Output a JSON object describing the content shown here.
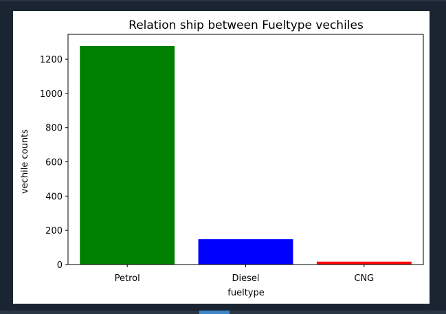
{
  "chart_data": {
    "type": "bar",
    "title": "Relation ship between Fueltype vechiles",
    "xlabel": "fueltype",
    "ylabel": "vechile counts",
    "categories": [
      "Petrol",
      "Diesel",
      "CNG"
    ],
    "values": [
      1277,
      148,
      17
    ],
    "colors": [
      "#008000",
      "#0000ff",
      "#ff0000"
    ],
    "ylim": [
      0,
      1345
    ],
    "yticks": [
      0,
      200,
      400,
      600,
      800,
      1000,
      1200
    ],
    "grid": false
  }
}
